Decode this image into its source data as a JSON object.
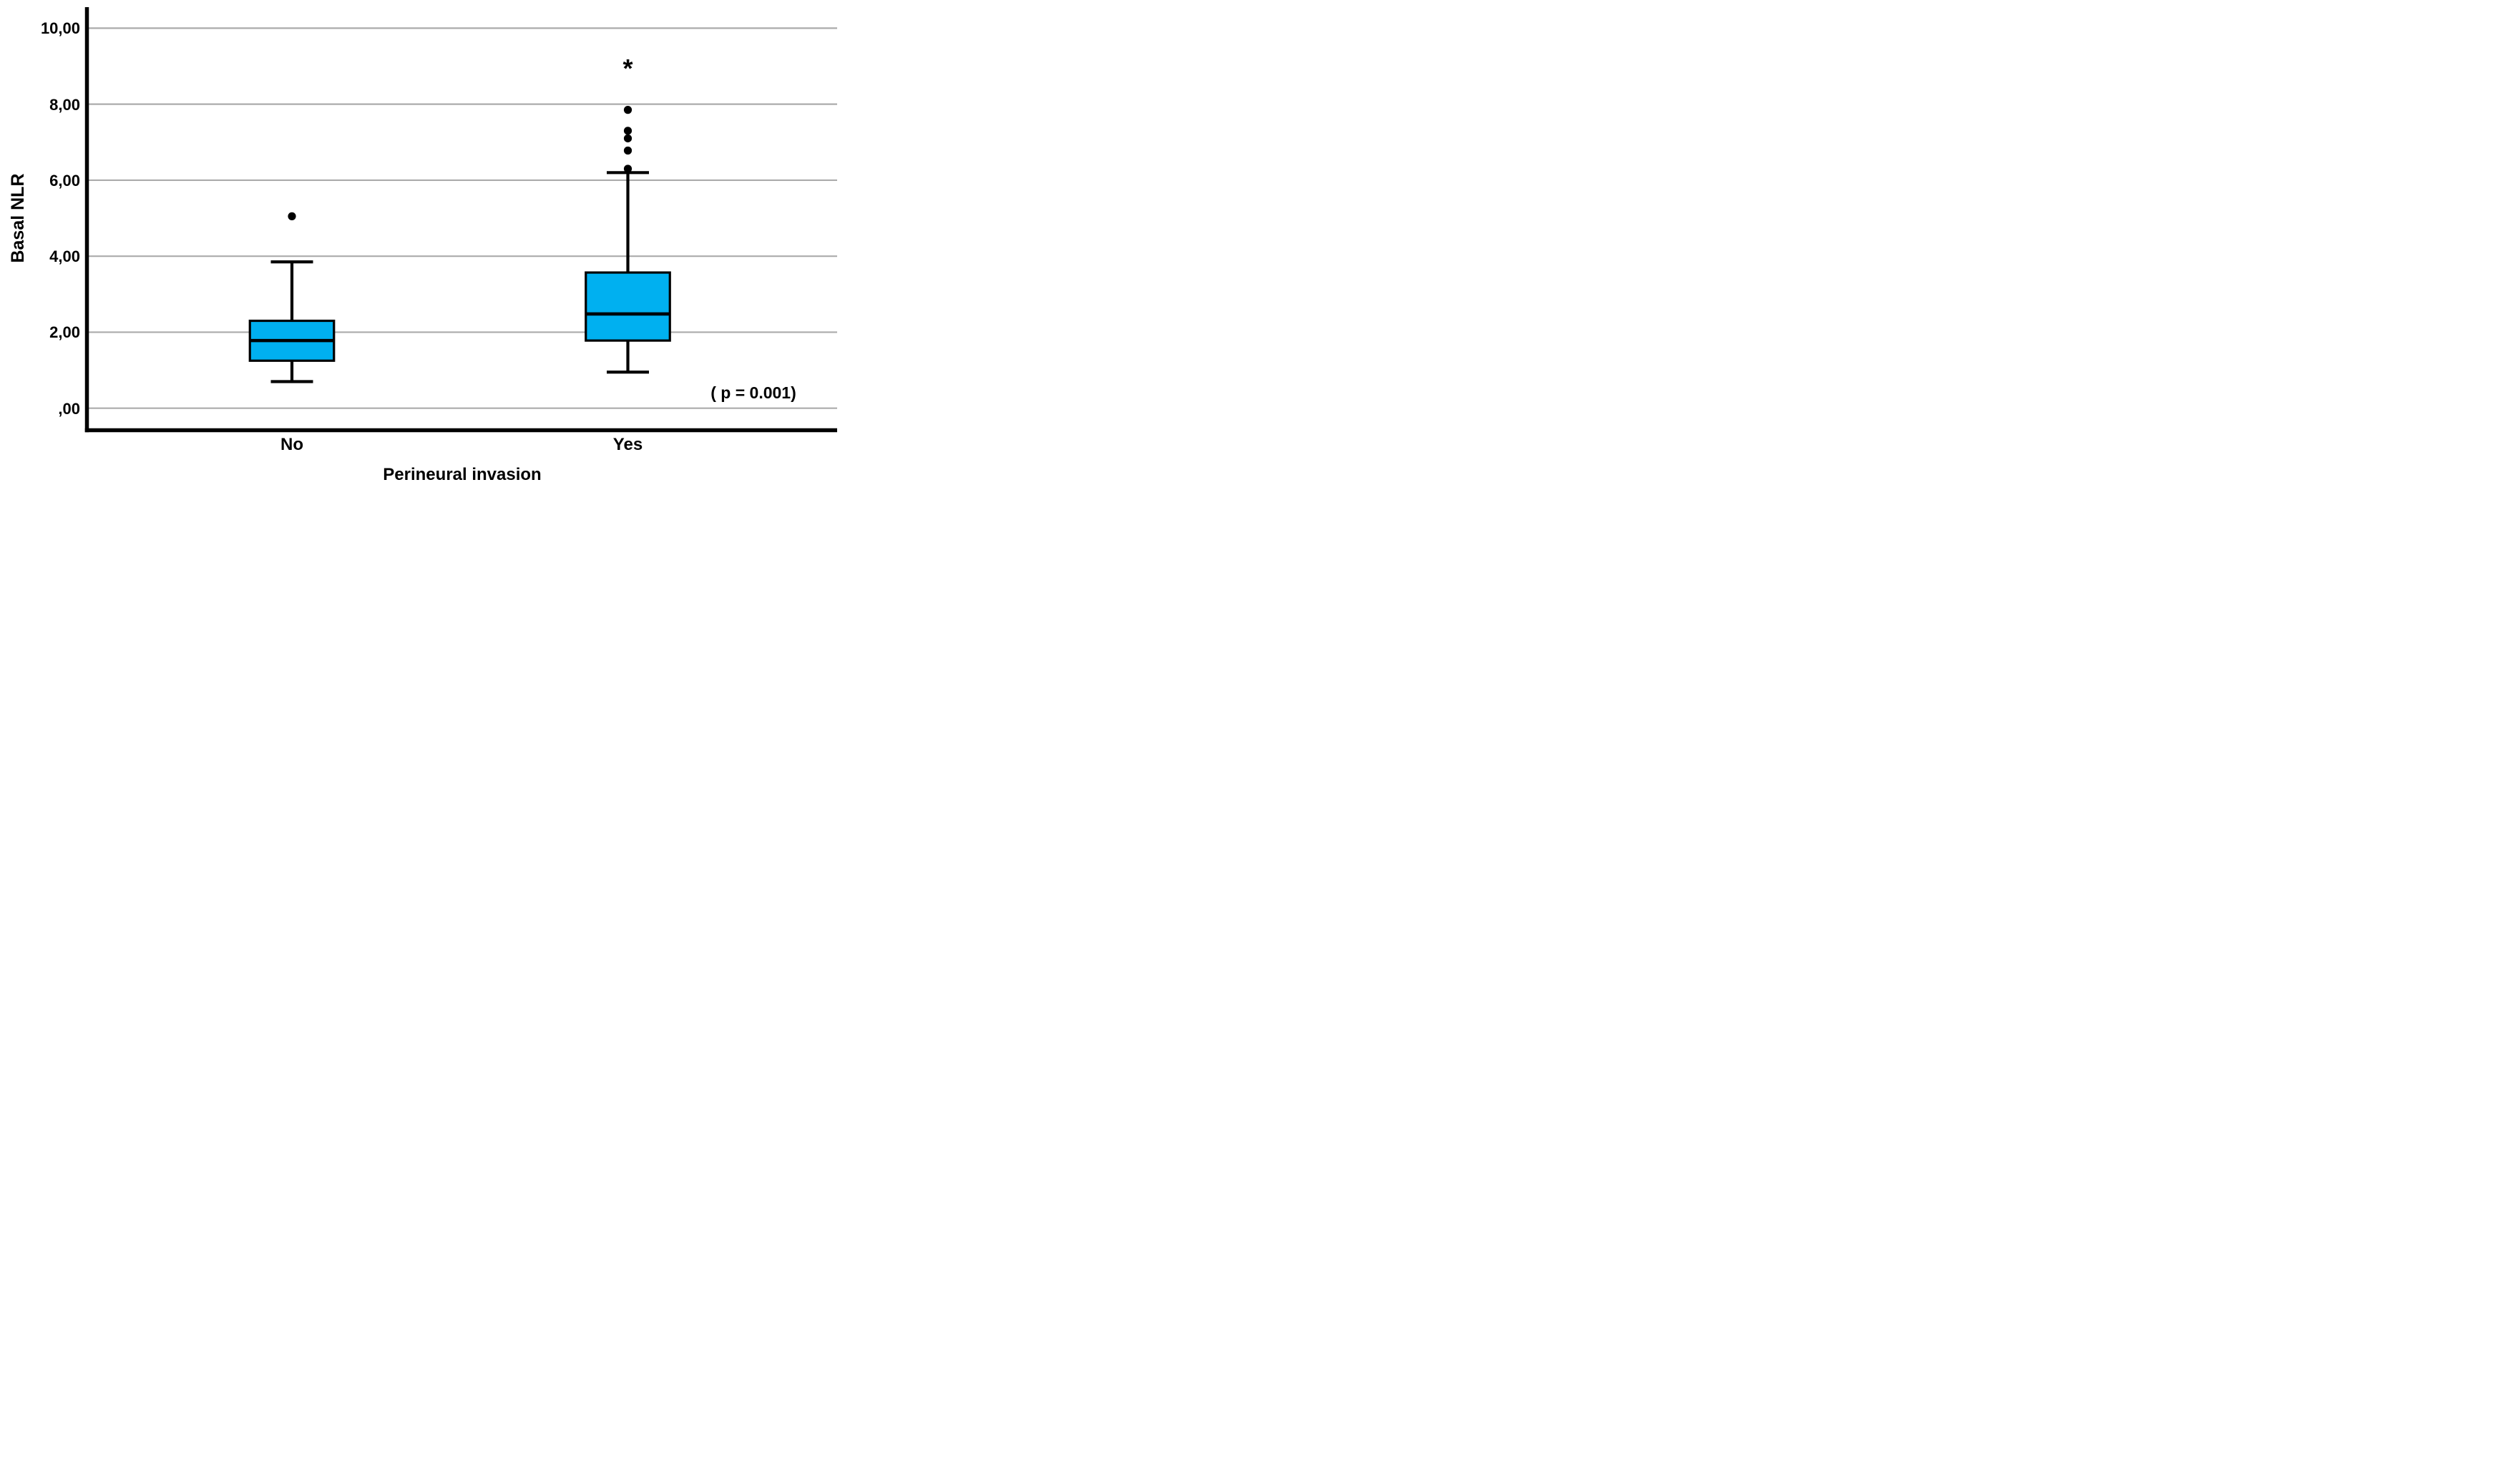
{
  "figure": {
    "background": "#FFFFFF"
  },
  "chart_data": {
    "type": "boxplot",
    "orientation": "vertical",
    "title": "",
    "ylabel": "Basal NLR",
    "xlabel": "Perineural invasion",
    "annotation": "( p = 0.001)",
    "ylim": [
      -0.55,
      10.55
    ],
    "yticks": [
      0,
      2,
      4,
      6,
      8,
      10
    ],
    "ytick_labels": [
      ",00",
      "2,00",
      "4,00",
      "6,00",
      "8,00",
      "10,00"
    ],
    "decimal_separator": ",",
    "grid": true,
    "legend": "none",
    "categories": [
      "No",
      "Yes"
    ],
    "series": [
      {
        "category": "No",
        "whisker_low": 0.7,
        "q1": 1.25,
        "median": 1.78,
        "q3": 2.3,
        "whisker_high": 3.85,
        "outliers": [
          5.05
        ],
        "extreme_outliers": []
      },
      {
        "category": "Yes",
        "whisker_low": 0.95,
        "q1": 1.78,
        "median": 2.48,
        "q3": 3.57,
        "whisker_high": 6.2,
        "outliers": [
          6.3,
          6.78,
          7.1,
          7.3,
          7.85
        ],
        "extreme_outliers": [
          9.05
        ]
      }
    ],
    "colors": {
      "box_fill": "#00B0F0",
      "box_border": "#000000",
      "median": "#000000",
      "whisker": "#000000",
      "outlier": "#000000",
      "grid": "#ABABAB",
      "axis": "#000000",
      "text": "#000000"
    }
  }
}
